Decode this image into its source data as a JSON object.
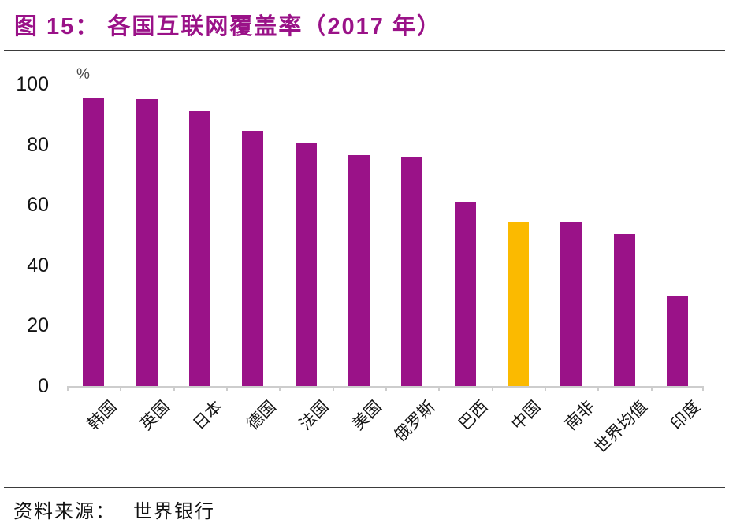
{
  "header": {
    "title": "图 15：  各国互联网覆盖率（2017 年）"
  },
  "footer": {
    "source_label": "资料来源：",
    "source_value": "世界银行"
  },
  "colors": {
    "title": "#9A1288",
    "bar_purple": "#9A1288",
    "highlight_yellow": "#FBBA00",
    "axis_line": "#CDCDCD",
    "rule_dark": "#3B3B3B"
  },
  "chart_data": {
    "type": "bar",
    "title": "各国互联网覆盖率（2017 年）",
    "unit_label": "%",
    "categories": [
      "韩国",
      "英国",
      "日本",
      "德国",
      "法国",
      "美国",
      "俄罗斯",
      "巴西",
      "中国",
      "南非",
      "世界均值",
      "印度"
    ],
    "values": [
      95.3,
      95.0,
      91.0,
      84.5,
      80.5,
      76.4,
      75.9,
      61.0,
      54.3,
      54.2,
      50.3,
      29.8
    ],
    "highlight_category": "中国",
    "bar_color": "#9A1288",
    "highlight_color": "#FBBA00",
    "ylim": [
      0,
      100
    ],
    "yticks": [
      0,
      20,
      40,
      60,
      80,
      100
    ],
    "xlabel": "",
    "ylabel": "%",
    "grid": false,
    "legend": false,
    "x_label_rotation_deg": -45
  }
}
